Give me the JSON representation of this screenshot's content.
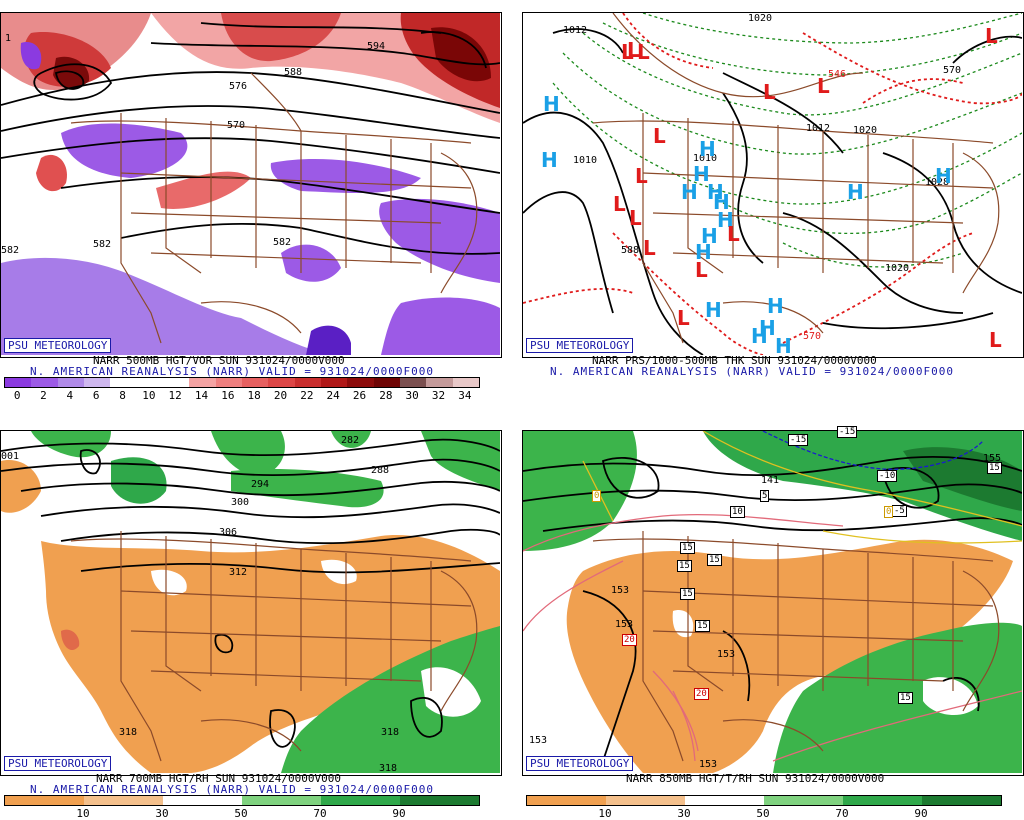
{
  "badge": "PSU METEOROLOGY",
  "panels": {
    "p500": {
      "caption_line1": "NARR 500MB HGT/VOR SUN 931024/0000V000",
      "caption_line2": "N. AMERICAN REANALYSIS (NARR) VALID = 931024/0000F000",
      "contour_labels": [
        "594",
        "588",
        "576",
        "570",
        "582",
        "582",
        "582",
        "1"
      ],
      "colorbar_ticks": [
        "0",
        "2",
        "4",
        "6",
        "8",
        "10",
        "12",
        "14",
        "16",
        "18",
        "20",
        "22",
        "24",
        "26",
        "28",
        "30",
        "32",
        "34"
      ],
      "colorbar_colors": [
        "#8b3ae0",
        "#9c5ae6",
        "#b08ae8",
        "#cfb8ef",
        "#ffffff",
        "#ffffff",
        "#ffffff",
        "#f4a3a3",
        "#ee7f7f",
        "#e66060",
        "#dc4646",
        "#c92e2e",
        "#b01818",
        "#8c0b0b",
        "#6e0404",
        "#7b4f4f",
        "#c49a9a",
        "#e8c8c8"
      ]
    },
    "pmslp": {
      "caption_line1": "NARR PRS/1000-500MB THK SUN 931024/0000V000",
      "caption_line2": "N. AMERICAN REANALYSIS (NARR) VALID = 931024/0000F000",
      "contour_labels": [
        "1020",
        "1012",
        "1010",
        "1010",
        "1012",
        "1020",
        "1020",
        "1028",
        "570",
        "546",
        "588",
        "570"
      ],
      "high_letter": "H",
      "low_letter": "L",
      "high_color": "#1aa0e6",
      "low_color": "#e01b1b"
    },
    "p700": {
      "caption_line1": "NARR 700MB HGT/RH SUN 931024/0000V000",
      "caption_line2": "N. AMERICAN REANALYSIS (NARR) VALID = 931024/0000F000",
      "contour_labels": [
        "282",
        "288",
        "294",
        "300",
        "306",
        "312",
        "318",
        "318",
        "318",
        "001"
      ],
      "colorbar_ticks": [
        "10",
        "30",
        "50",
        "70",
        "90"
      ],
      "colorbar_colors": [
        "#f0a050",
        "#f4c08c",
        "#ffffff",
        "#7fd27f",
        "#2fa84a",
        "#1c7a30"
      ]
    },
    "p850": {
      "caption_line1": "NARR 850MB HGT/T/RH SUN 931024/0000V000",
      "caption_line2": "",
      "contour_labels": [
        "153",
        "153",
        "153",
        "153",
        "153",
        "155",
        "141"
      ],
      "temp_labels": [
        "-15",
        "-15",
        "-10",
        "-5",
        "5",
        "10",
        "15",
        "15",
        "15",
        "15",
        "15",
        "15",
        "20",
        "20",
        "15",
        "0",
        "0"
      ],
      "colorbar_ticks": [
        "10",
        "30",
        "50",
        "70",
        "90"
      ],
      "colorbar_colors": [
        "#f0a050",
        "#f4c08c",
        "#ffffff",
        "#7fd27f",
        "#2fa84a",
        "#1c7a30"
      ]
    }
  },
  "colors": {
    "border": "#8b4a2a",
    "contour": "#000000",
    "badge_blue": "#1a1aa8",
    "orange_dry": "#f0a050",
    "green_moist": "#3cb44b",
    "purple_vort": "#9c5ae6",
    "red_vort": "#e05050"
  }
}
